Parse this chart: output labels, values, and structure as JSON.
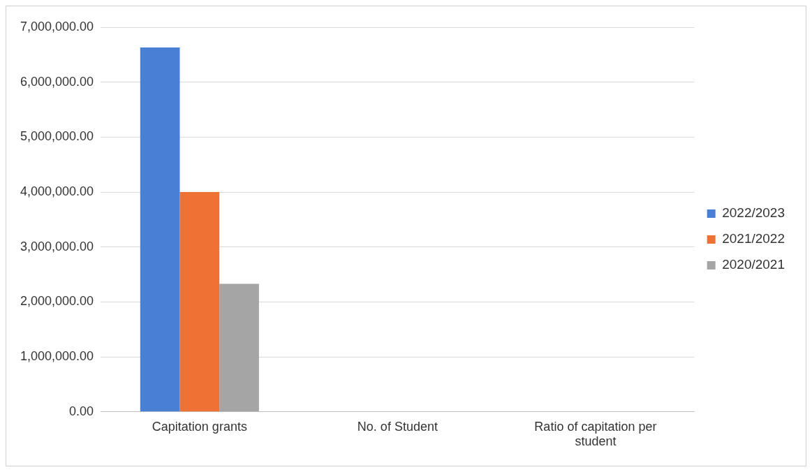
{
  "chart_data": {
    "type": "bar",
    "categories": [
      "Capitation grants",
      "No. of Student",
      "Ratio of capitation per student"
    ],
    "series": [
      {
        "name": "2022/2023",
        "color": "#4a7fd6",
        "values": [
          6630000,
          0,
          0
        ]
      },
      {
        "name": "2021/2022",
        "color": "#ed7234",
        "values": [
          4000000,
          0,
          0
        ]
      },
      {
        "name": "2020/2021",
        "color": "#a5a5a5",
        "values": [
          2330000,
          0,
          0
        ]
      }
    ],
    "ylim": [
      0,
      7000000
    ],
    "yticks": [
      {
        "value": 0,
        "label": "0.00"
      },
      {
        "value": 1000000,
        "label": "1,000,000.00"
      },
      {
        "value": 2000000,
        "label": "2,000,000.00"
      },
      {
        "value": 3000000,
        "label": "3,000,000.00"
      },
      {
        "value": 4000000,
        "label": "4,000,000.00"
      },
      {
        "value": 5000000,
        "label": "5,000,000.00"
      },
      {
        "value": 6000000,
        "label": "6,000,000.00"
      },
      {
        "value": 7000000,
        "label": "7,000,000.00"
      }
    ],
    "grid": "y",
    "legend": "right"
  }
}
